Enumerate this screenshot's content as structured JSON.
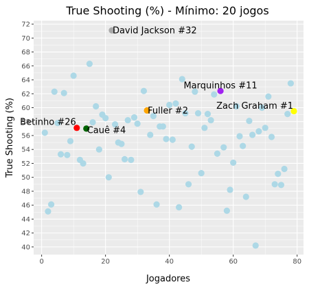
{
  "chart_data": {
    "type": "scatter",
    "title": "True Shooting (%) - Mínimo: 20 jogos",
    "xlabel": "Jogadores",
    "ylabel": "True Shooting (%)",
    "xlim": [
      -2.5,
      82
    ],
    "ylim": [
      38.9,
      72.5
    ],
    "x_ticks": [
      0,
      20,
      40,
      60,
      80
    ],
    "y_ticks": [
      40,
      42,
      44,
      46,
      48,
      50,
      52,
      54,
      56,
      58,
      60,
      62,
      64,
      66,
      68,
      70,
      72
    ],
    "grid": true,
    "background": "#ebebeb",
    "grid_color": "#ffffff",
    "point_color": "#add8e6",
    "points": [
      {
        "x": 1,
        "y": 56.4
      },
      {
        "x": 2,
        "y": 45.1
      },
      {
        "x": 3,
        "y": 46.1
      },
      {
        "x": 4,
        "y": 62.3
      },
      {
        "x": 5,
        "y": 57.8
      },
      {
        "x": 6,
        "y": 53.3
      },
      {
        "x": 7,
        "y": 62.1
      },
      {
        "x": 8,
        "y": 53.2
      },
      {
        "x": 9,
        "y": 55.2
      },
      {
        "x": 10,
        "y": 64.6
      },
      {
        "x": 12,
        "y": 52.5
      },
      {
        "x": 13,
        "y": 52.0
      },
      {
        "x": 15,
        "y": 66.3
      },
      {
        "x": 16,
        "y": 57.9
      },
      {
        "x": 17,
        "y": 60.2
      },
      {
        "x": 18,
        "y": 54.0
      },
      {
        "x": 19,
        "y": 59.0
      },
      {
        "x": 20,
        "y": 58.5
      },
      {
        "x": 21,
        "y": 50.0
      },
      {
        "x": 23,
        "y": 57.6
      },
      {
        "x": 24,
        "y": 55.0
      },
      {
        "x": 25,
        "y": 54.8
      },
      {
        "x": 26,
        "y": 52.6
      },
      {
        "x": 27,
        "y": 58.2
      },
      {
        "x": 28,
        "y": 52.5
      },
      {
        "x": 29,
        "y": 58.6
      },
      {
        "x": 30,
        "y": 57.7
      },
      {
        "x": 31,
        "y": 47.9
      },
      {
        "x": 32,
        "y": 62.4
      },
      {
        "x": 34,
        "y": 56.1
      },
      {
        "x": 35,
        "y": 58.8
      },
      {
        "x": 36,
        "y": 46.1
      },
      {
        "x": 37,
        "y": 57.3
      },
      {
        "x": 38,
        "y": 57.3
      },
      {
        "x": 39,
        "y": 55.5
      },
      {
        "x": 40,
        "y": 60.4
      },
      {
        "x": 41,
        "y": 55.4
      },
      {
        "x": 42,
        "y": 60.6
      },
      {
        "x": 43,
        "y": 45.7
      },
      {
        "x": 44,
        "y": 64.1
      },
      {
        "x": 45,
        "y": 59.2
      },
      {
        "x": 46,
        "y": 49.0
      },
      {
        "x": 47,
        "y": 54.4
      },
      {
        "x": 48,
        "y": 62.3
      },
      {
        "x": 49,
        "y": 59.2
      },
      {
        "x": 50,
        "y": 50.6
      },
      {
        "x": 51,
        "y": 57.1
      },
      {
        "x": 52,
        "y": 59.1
      },
      {
        "x": 53,
        "y": 58.2
      },
      {
        "x": 54,
        "y": 61.9
      },
      {
        "x": 55,
        "y": 53.4
      },
      {
        "x": 57,
        "y": 54.3
      },
      {
        "x": 58,
        "y": 45.2
      },
      {
        "x": 59,
        "y": 48.2
      },
      {
        "x": 60,
        "y": 52.1
      },
      {
        "x": 61,
        "y": 60.2
      },
      {
        "x": 62,
        "y": 55.9
      },
      {
        "x": 63,
        "y": 54.5
      },
      {
        "x": 64,
        "y": 47.2
      },
      {
        "x": 65,
        "y": 58.1
      },
      {
        "x": 66,
        "y": 56.1
      },
      {
        "x": 67,
        "y": 40.2
      },
      {
        "x": 68,
        "y": 56.6
      },
      {
        "x": 69,
        "y": 60.0
      },
      {
        "x": 70,
        "y": 57.1
      },
      {
        "x": 71,
        "y": 61.6
      },
      {
        "x": 72,
        "y": 55.8
      },
      {
        "x": 73,
        "y": 49.0
      },
      {
        "x": 74,
        "y": 50.5
      },
      {
        "x": 75,
        "y": 48.9
      },
      {
        "x": 76,
        "y": 51.2
      },
      {
        "x": 77,
        "y": 59.1
      },
      {
        "x": 78,
        "y": 63.5
      }
    ],
    "highlights": [
      {
        "label": "David Jackson #32",
        "x": 22,
        "y": 71.1,
        "color": "#a9a9a9"
      },
      {
        "label": "Marquinhos #11",
        "x": 56,
        "y": 62.4,
        "color": "#a020f0"
      },
      {
        "label": "Fuller #2",
        "x": 33,
        "y": 59.6,
        "color": "#ffa500"
      },
      {
        "label": "Zach Graham #1",
        "x": 79,
        "y": 59.5,
        "color": "#ffff00"
      },
      {
        "label": "Betinho #26",
        "x": 11,
        "y": 57.1,
        "color": "#ff0000"
      },
      {
        "label": "Cauê #4",
        "x": 14,
        "y": 57.0,
        "color": "#006400"
      }
    ]
  }
}
